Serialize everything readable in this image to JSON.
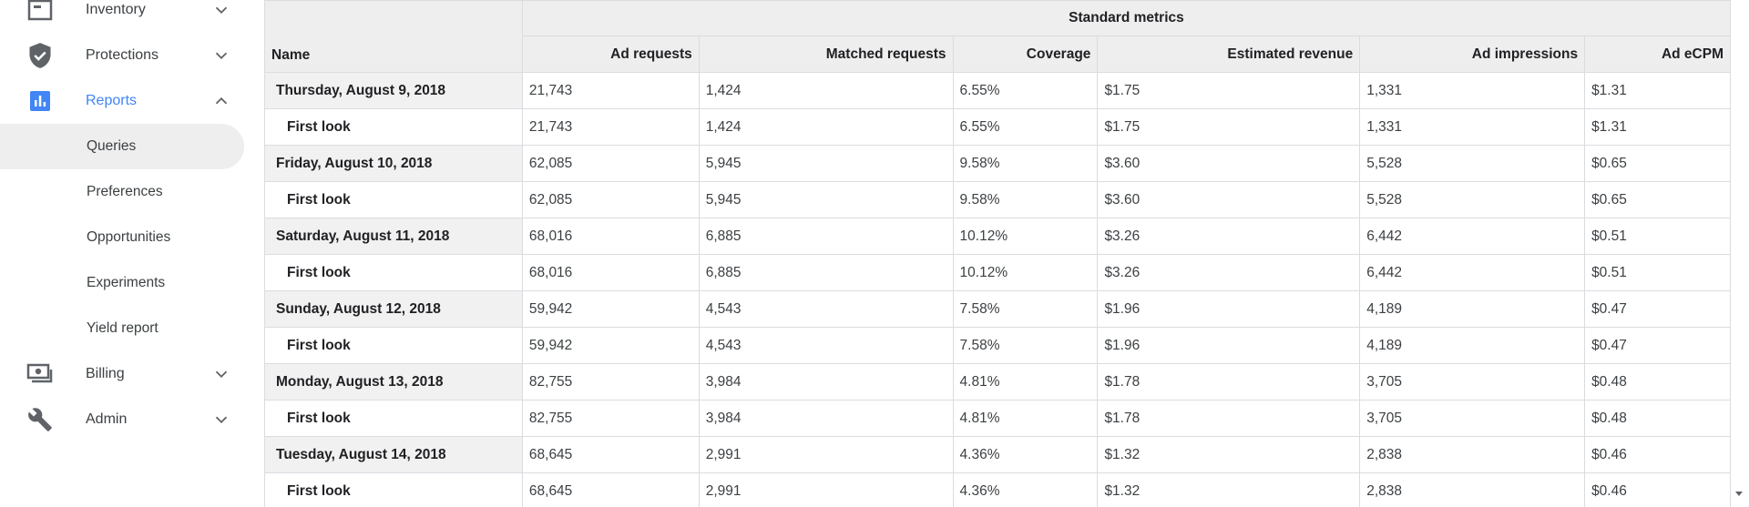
{
  "sidebar": {
    "items": [
      {
        "label": "Inventory",
        "icon": "inventory-icon",
        "expanded": false
      },
      {
        "label": "Protections",
        "icon": "shield-icon",
        "expanded": false
      },
      {
        "label": "Reports",
        "icon": "bar-chart-icon",
        "expanded": true
      },
      {
        "label": "Billing",
        "icon": "billing-icon",
        "expanded": false
      },
      {
        "label": "Admin",
        "icon": "wrench-icon",
        "expanded": false
      }
    ],
    "report_subitems": [
      {
        "label": "Queries",
        "selected": true
      },
      {
        "label": "Preferences"
      },
      {
        "label": "Opportunities"
      },
      {
        "label": "Experiments"
      },
      {
        "label": "Yield report"
      }
    ]
  },
  "table": {
    "group_header": "Standard metrics",
    "name_header": "Name",
    "columns": [
      "Ad requests",
      "Matched requests",
      "Coverage",
      "Estimated revenue",
      "Ad impressions",
      "Ad eCPM"
    ],
    "rows": [
      {
        "name": "Thursday, August 9, 2018",
        "type": "date",
        "values": [
          "21,743",
          "1,424",
          "6.55%",
          "$1.75",
          "1,331",
          "$1.31"
        ]
      },
      {
        "name": "First look",
        "type": "child",
        "values": [
          "21,743",
          "1,424",
          "6.55%",
          "$1.75",
          "1,331",
          "$1.31"
        ]
      },
      {
        "name": "Friday, August 10, 2018",
        "type": "date",
        "values": [
          "62,085",
          "5,945",
          "9.58%",
          "$3.60",
          "5,528",
          "$0.65"
        ]
      },
      {
        "name": "First look",
        "type": "child",
        "values": [
          "62,085",
          "5,945",
          "9.58%",
          "$3.60",
          "5,528",
          "$0.65"
        ]
      },
      {
        "name": "Saturday, August 11, 2018",
        "type": "date",
        "values": [
          "68,016",
          "6,885",
          "10.12%",
          "$3.26",
          "6,442",
          "$0.51"
        ]
      },
      {
        "name": "First look",
        "type": "child",
        "values": [
          "68,016",
          "6,885",
          "10.12%",
          "$3.26",
          "6,442",
          "$0.51"
        ]
      },
      {
        "name": "Sunday, August 12, 2018",
        "type": "date",
        "values": [
          "59,942",
          "4,543",
          "7.58%",
          "$1.96",
          "4,189",
          "$0.47"
        ]
      },
      {
        "name": "First look",
        "type": "child",
        "values": [
          "59,942",
          "4,543",
          "7.58%",
          "$1.96",
          "4,189",
          "$0.47"
        ]
      },
      {
        "name": "Monday, August 13, 2018",
        "type": "date",
        "values": [
          "82,755",
          "3,984",
          "4.81%",
          "$1.78",
          "3,705",
          "$0.48"
        ]
      },
      {
        "name": "First look",
        "type": "child",
        "values": [
          "82,755",
          "3,984",
          "4.81%",
          "$1.78",
          "3,705",
          "$0.48"
        ]
      },
      {
        "name": "Tuesday, August 14, 2018",
        "type": "date",
        "values": [
          "68,645",
          "2,991",
          "4.36%",
          "$1.32",
          "2,838",
          "$0.46"
        ]
      },
      {
        "name": "First look",
        "type": "child",
        "values": [
          "68,645",
          "2,991",
          "4.36%",
          "$1.32",
          "2,838",
          "$0.46"
        ]
      }
    ]
  },
  "colors": {
    "accent": "#4285f4",
    "icon_gray": "#5f6368",
    "selected_bg": "#eeeeee",
    "header_bg": "#eeeeee"
  }
}
